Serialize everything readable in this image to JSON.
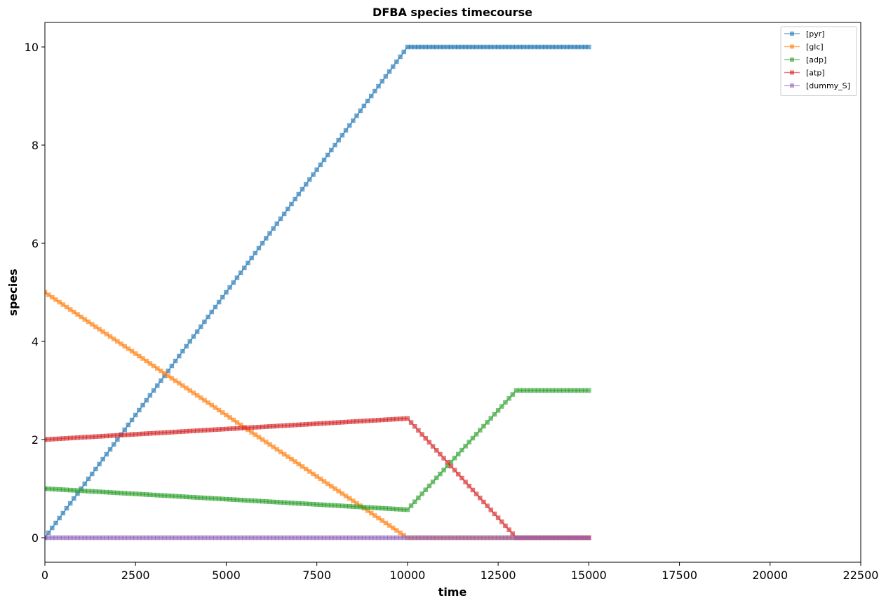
{
  "chart_data": {
    "type": "line",
    "title": "DFBA species timecourse",
    "xlabel": "time",
    "ylabel": "species",
    "xlim": [
      0,
      22500
    ],
    "ylim": [
      -0.5,
      10.5
    ],
    "x_ticks": [
      0,
      2500,
      5000,
      7500,
      10000,
      12500,
      15000,
      17500,
      20000,
      22500
    ],
    "y_ticks": [
      0,
      2,
      4,
      6,
      8,
      10
    ],
    "grid": false,
    "legend_position": "top-right",
    "marker": "square",
    "sample_step": 100,
    "series": [
      {
        "name": "[pyr]",
        "color": "#1f77b4",
        "points": [
          [
            0,
            0
          ],
          [
            10000,
            10
          ],
          [
            15000,
            10
          ]
        ]
      },
      {
        "name": "[glc]",
        "color": "#ff7f0e",
        "points": [
          [
            0,
            5
          ],
          [
            10000,
            0
          ],
          [
            15000,
            0
          ]
        ]
      },
      {
        "name": "[adp]",
        "color": "#2ca02c",
        "points": [
          [
            0,
            1
          ],
          [
            10000,
            0.57
          ],
          [
            13000,
            3
          ],
          [
            15000,
            3
          ]
        ]
      },
      {
        "name": "[atp]",
        "color": "#d62728",
        "points": [
          [
            0,
            2
          ],
          [
            10000,
            2.43
          ],
          [
            13000,
            0
          ],
          [
            15000,
            0
          ]
        ]
      },
      {
        "name": "[dummy_S]",
        "color": "#9467bd",
        "points": [
          [
            0,
            0
          ],
          [
            15000,
            0
          ]
        ]
      }
    ]
  }
}
